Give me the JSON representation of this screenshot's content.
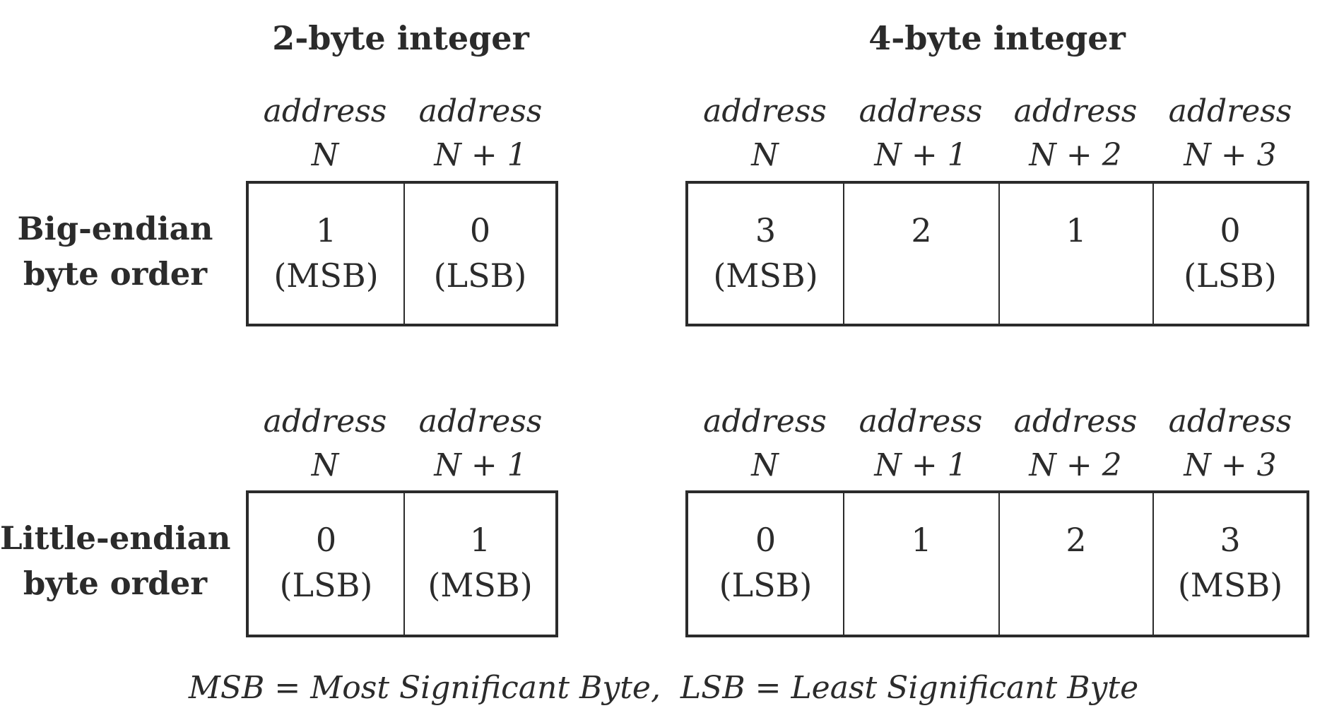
{
  "columns": {
    "two_byte_title": "2-byte integer",
    "four_byte_title": "4-byte integer"
  },
  "rows": {
    "big_endian": {
      "line1": "Big-endian",
      "line2": "byte order"
    },
    "little_endian": {
      "line1": "Little-endian",
      "line2": "byte order"
    }
  },
  "address_word": "address",
  "address_offsets": [
    "N",
    "N + 1",
    "N + 2",
    "N + 3"
  ],
  "big_endian": {
    "two_byte": [
      {
        "value": "1",
        "note": "(MSB)"
      },
      {
        "value": "0",
        "note": "(LSB)"
      }
    ],
    "four_byte": [
      {
        "value": "3",
        "note": "(MSB)"
      },
      {
        "value": "2",
        "note": ""
      },
      {
        "value": "1",
        "note": ""
      },
      {
        "value": "0",
        "note": "(LSB)"
      }
    ]
  },
  "little_endian": {
    "two_byte": [
      {
        "value": "0",
        "note": "(LSB)"
      },
      {
        "value": "1",
        "note": "(MSB)"
      }
    ],
    "four_byte": [
      {
        "value": "0",
        "note": "(LSB)"
      },
      {
        "value": "1",
        "note": ""
      },
      {
        "value": "2",
        "note": ""
      },
      {
        "value": "3",
        "note": "(MSB)"
      }
    ]
  },
  "footnote": "MSB = Most Significant Byte,  LSB = Least Significant Byte",
  "colors": {
    "ink": "#2b2b2b",
    "background": "#ffffff"
  }
}
